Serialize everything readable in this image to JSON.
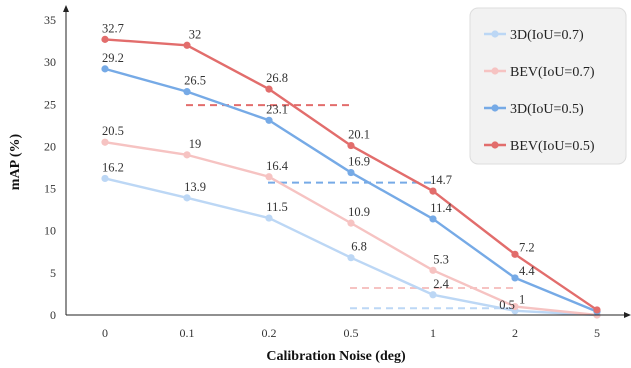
{
  "chart_data": {
    "type": "line",
    "categories": [
      "0",
      "0.1",
      "0.2",
      "0.5",
      "1",
      "2",
      "5"
    ],
    "xlabel": "Calibration Noise (deg)",
    "ylabel": "mAP (%)",
    "ylim": [
      0,
      35
    ],
    "yticks": [
      "0",
      "5",
      "10",
      "15",
      "20",
      "25",
      "30",
      "35"
    ],
    "grid": false,
    "legend_position": "top-right",
    "series": [
      {
        "name": "3D(IoU=0.7)",
        "color": "#bcd7f5",
        "values": [
          16.2,
          13.9,
          11.5,
          6.8,
          2.4,
          0.5,
          0.0
        ],
        "labels": [
          "16.2",
          "13.9",
          "11.5",
          "6.8",
          "2.4",
          "0.5",
          ""
        ]
      },
      {
        "name": "BEV(IoU=0.7)",
        "color": "#f6c3c2",
        "values": [
          20.5,
          19.0,
          16.4,
          10.9,
          5.3,
          1.0,
          0.0
        ],
        "labels": [
          "20.5",
          "19",
          "16.4",
          "10.9",
          "5.3",
          "1",
          ""
        ]
      },
      {
        "name": "3D(IoU=0.5)",
        "color": "#76aae6",
        "values": [
          29.2,
          26.5,
          23.1,
          16.9,
          11.4,
          4.4,
          0.4
        ],
        "labels": [
          "29.2",
          "26.5",
          "23.1",
          "16.9",
          "11.4",
          "4.4",
          ""
        ]
      },
      {
        "name": "BEV(IoU=0.5)",
        "color": "#e26d6c",
        "values": [
          32.7,
          32.0,
          26.8,
          20.1,
          14.7,
          7.2,
          0.6
        ],
        "labels": [
          "32.7",
          "32",
          "26.8",
          "20.1",
          "14.7",
          "7.2",
          ""
        ]
      }
    ],
    "reference_lines": [
      {
        "series": "BEV(IoU=0.5)",
        "y": 24.9,
        "from": "0.1",
        "to": "0.5"
      },
      {
        "series": "3D(IoU=0.5)",
        "y": 15.7,
        "from": "0.2",
        "to": "1"
      },
      {
        "series": "BEV(IoU=0.7)",
        "y": 3.2,
        "from": "0.5",
        "to": "2"
      },
      {
        "series": "3D(IoU=0.7)",
        "y": 0.8,
        "from": "0.5",
        "to": "2"
      }
    ]
  }
}
